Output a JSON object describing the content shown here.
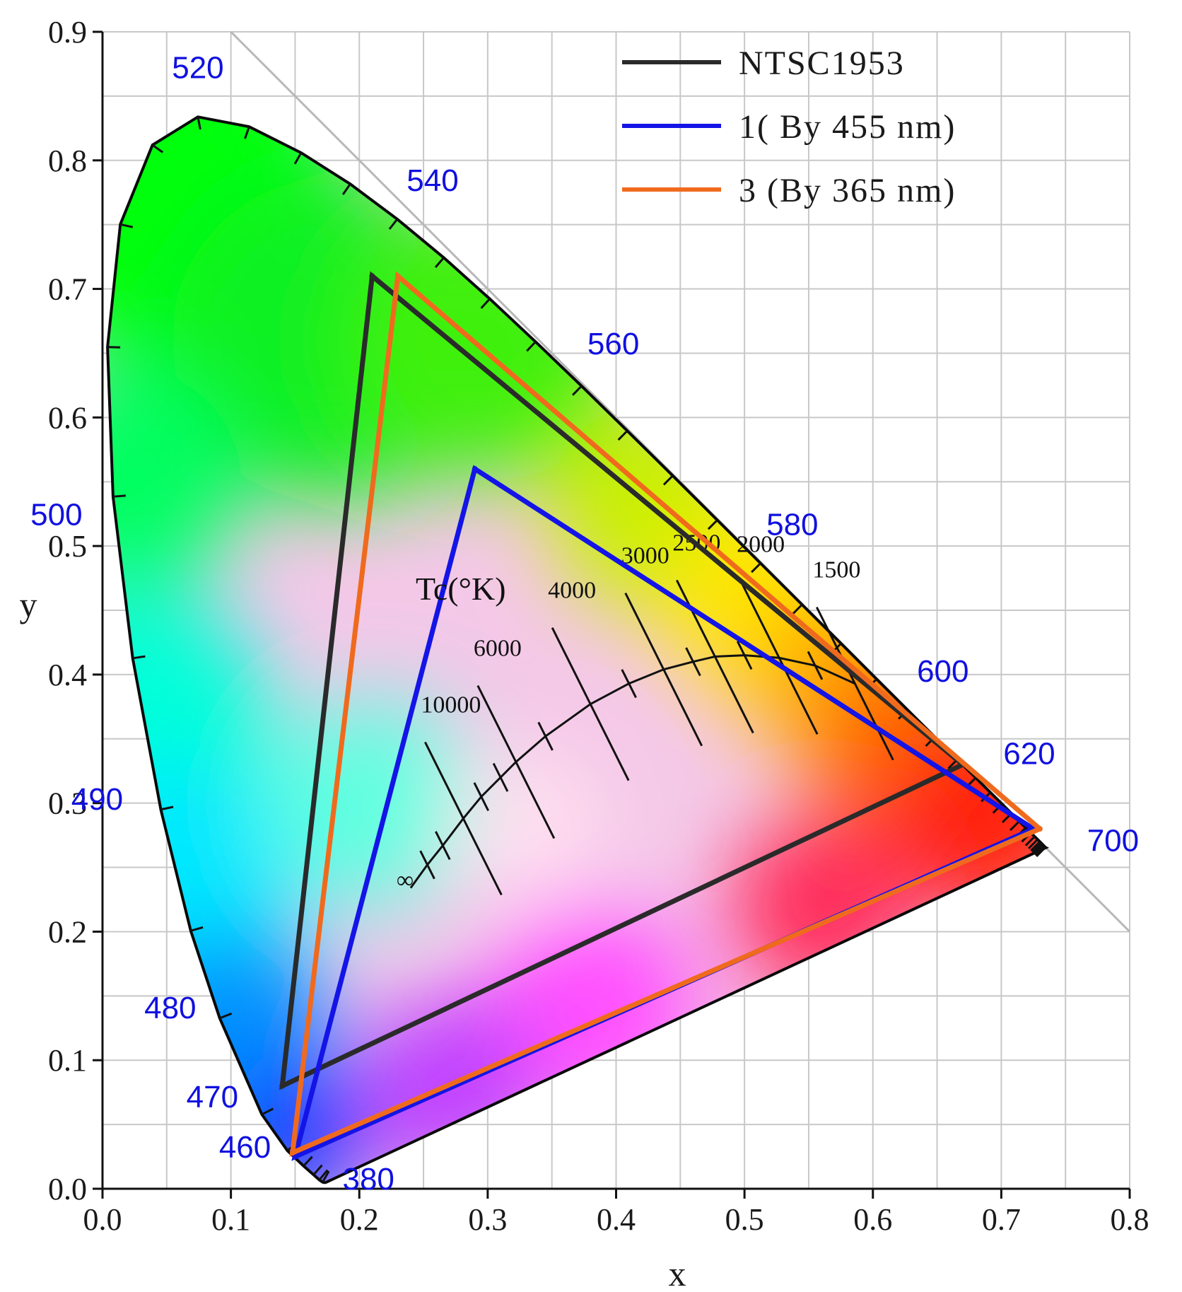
{
  "chart_data": {
    "type": "scatter",
    "title": "",
    "xlabel": "x",
    "ylabel": "y",
    "xlim": [
      0.0,
      0.8
    ],
    "ylim": [
      0.0,
      0.9
    ],
    "xticks": [
      "0.0",
      "0.1",
      "0.2",
      "0.3",
      "0.4",
      "0.5",
      "0.6",
      "0.7",
      "0.8"
    ],
    "yticks": [
      "0.0",
      "0.1",
      "0.2",
      "0.3",
      "0.4",
      "0.5",
      "0.6",
      "0.7",
      "0.8",
      "0.9"
    ],
    "grid": true,
    "legend_position": "top-right",
    "series": [
      {
        "name": "NTSC1953",
        "color": "#2a2a2a",
        "x": [
          0.67,
          0.21,
          0.14,
          0.67
        ],
        "y": [
          0.33,
          0.71,
          0.08,
          0.33
        ]
      },
      {
        "name": "1( By 455 nm)",
        "color": "#1414e6",
        "x": [
          0.725,
          0.29,
          0.15,
          0.725
        ],
        "y": [
          0.28,
          0.56,
          0.025,
          0.28
        ]
      },
      {
        "name": "3 (By 365 nm)",
        "color": "#f06a1e",
        "x": [
          0.73,
          0.23,
          0.148,
          0.73
        ],
        "y": [
          0.28,
          0.71,
          0.028,
          0.28
        ]
      }
    ],
    "spectral_locus": {
      "labels": [
        {
          "nm": "380",
          "x": 0.1741,
          "y": 0.005
        },
        {
          "nm": "460",
          "x": 0.144,
          "y": 0.0297
        },
        {
          "nm": "470",
          "x": 0.1241,
          "y": 0.0578
        },
        {
          "nm": "480",
          "x": 0.0913,
          "y": 0.1327
        },
        {
          "nm": "490",
          "x": 0.0454,
          "y": 0.295
        },
        {
          "nm": "500",
          "x": 0.0082,
          "y": 0.5384
        },
        {
          "nm": "520",
          "x": 0.0743,
          "y": 0.8338
        },
        {
          "nm": "540",
          "x": 0.2296,
          "y": 0.7543
        },
        {
          "nm": "560",
          "x": 0.3731,
          "y": 0.6245
        },
        {
          "nm": "580",
          "x": 0.5125,
          "y": 0.4866
        },
        {
          "nm": "600",
          "x": 0.627,
          "y": 0.3725
        },
        {
          "nm": "620",
          "x": 0.6915,
          "y": 0.3083
        },
        {
          "nm": "700",
          "x": 0.7347,
          "y": 0.2653
        }
      ]
    },
    "planckian_locus": {
      "title": "Tc(°K)",
      "labels": [
        {
          "text": "10000",
          "x": 0.281,
          "y": 0.288
        },
        {
          "text": "6000",
          "x": 0.322,
          "y": 0.332
        },
        {
          "text": "4000",
          "x": 0.38,
          "y": 0.377
        },
        {
          "text": "3000",
          "x": 0.437,
          "y": 0.404
        },
        {
          "text": "2500",
          "x": 0.477,
          "y": 0.414
        },
        {
          "text": "2000",
          "x": 0.527,
          "y": 0.413
        },
        {
          "text": "1500",
          "x": 0.586,
          "y": 0.393
        },
        {
          "text": "∞",
          "x": 0.24,
          "y": 0.234
        }
      ]
    }
  }
}
